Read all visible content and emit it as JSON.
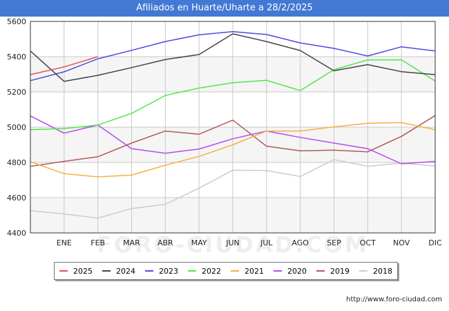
{
  "header": {
    "title": "Afiliados en Huarte/Uharte a 28/2/2025"
  },
  "footer": {
    "url": "http://www.foro-ciudad.com"
  },
  "watermark": "FORO-CIUDAD.COM",
  "colors": {
    "title_bg": "#4378d4",
    "grid": "#c8c8c8",
    "band": "#f5f5f5"
  },
  "chart_data": {
    "type": "line",
    "title": "Afiliados en Huarte/Uharte a 28/2/2025",
    "categories": [
      "",
      "ENE",
      "FEB",
      "MAR",
      "ABR",
      "MAY",
      "JUN",
      "JUL",
      "AGO",
      "SEP",
      "OCT",
      "NOV",
      "DIC"
    ],
    "ylim": [
      4400,
      5600
    ],
    "yticks": [
      4400,
      4600,
      4800,
      5000,
      5200,
      5400,
      5600
    ],
    "grid": true,
    "legend_position": "bottom",
    "series": [
      {
        "name": "2025",
        "color": "#e8504a",
        "values": [
          5298,
          5342,
          5400,
          null,
          null,
          null,
          null,
          null,
          null,
          null,
          null,
          null,
          null
        ]
      },
      {
        "name": "2024",
        "color": "#444444",
        "values": [
          5432,
          5260,
          5294,
          5338,
          5384,
          5412,
          5530,
          5486,
          5435,
          5320,
          5355,
          5315,
          5298
        ]
      },
      {
        "name": "2023",
        "color": "#4a4ae0",
        "values": [
          5264,
          5314,
          5388,
          5436,
          5486,
          5524,
          5542,
          5526,
          5478,
          5447,
          5404,
          5456,
          5432
        ]
      },
      {
        "name": "2022",
        "color": "#4ce84c",
        "values": [
          4986,
          4992,
          5012,
          5078,
          5180,
          5222,
          5252,
          5266,
          5208,
          5326,
          5382,
          5382,
          5262
        ]
      },
      {
        "name": "2021",
        "color": "#f5b042",
        "values": [
          4804,
          4736,
          4718,
          4728,
          4784,
          4834,
          4900,
          4978,
          4978,
          5002,
          5022,
          5026,
          4986
        ]
      },
      {
        "name": "2020",
        "color": "#b44ce8",
        "values": [
          5064,
          4966,
          5012,
          4878,
          4852,
          4876,
          4934,
          4978,
          4942,
          4910,
          4878,
          4792,
          4806
        ]
      },
      {
        "name": "2019",
        "color": "#b05a5a",
        "values": [
          4778,
          4806,
          4832,
          4910,
          4978,
          4960,
          5040,
          4892,
          4866,
          4870,
          4860,
          4948,
          5066
        ]
      },
      {
        "name": "2018",
        "color": "#cccccc",
        "values": [
          4526,
          4508,
          4484,
          4538,
          4562,
          4654,
          4756,
          4754,
          4720,
          4816,
          4778,
          4796,
          4780
        ]
      }
    ]
  }
}
